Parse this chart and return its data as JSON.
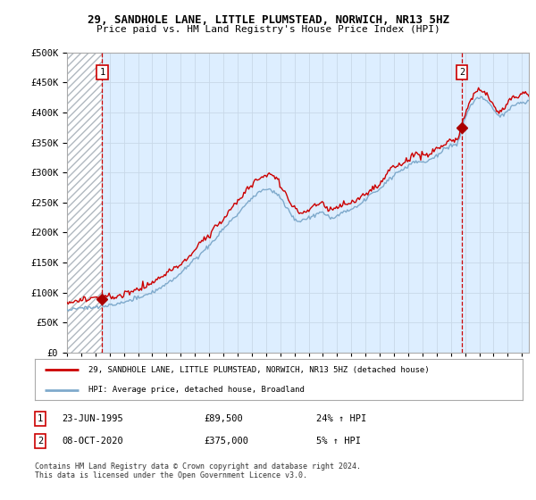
{
  "title_line1": "29, SANDHOLE LANE, LITTLE PLUMSTEAD, NORWICH, NR13 5HZ",
  "title_line2": "Price paid vs. HM Land Registry's House Price Index (HPI)",
  "ylim": [
    0,
    500000
  ],
  "yticks": [
    0,
    50000,
    100000,
    150000,
    200000,
    250000,
    300000,
    350000,
    400000,
    450000,
    500000
  ],
  "ytick_labels": [
    "£0",
    "£50K",
    "£100K",
    "£150K",
    "£200K",
    "£250K",
    "£300K",
    "£350K",
    "£400K",
    "£450K",
    "£500K"
  ],
  "xlim_start": 1993.0,
  "xlim_end": 2025.5,
  "xticks": [
    1993,
    1994,
    1995,
    1996,
    1997,
    1998,
    1999,
    2000,
    2001,
    2002,
    2003,
    2004,
    2005,
    2006,
    2007,
    2008,
    2009,
    2010,
    2011,
    2012,
    2013,
    2014,
    2015,
    2016,
    2017,
    2018,
    2019,
    2020,
    2021,
    2022,
    2023,
    2024,
    2025
  ],
  "sale1_x": 1995.48,
  "sale1_y": 89500,
  "sale1_label": "1",
  "sale1_date": "23-JUN-1995",
  "sale1_price": "£89,500",
  "sale1_hpi": "24% ↑ HPI",
  "sale2_x": 2020.77,
  "sale2_y": 375000,
  "sale2_label": "2",
  "sale2_date": "08-OCT-2020",
  "sale2_price": "£375,000",
  "sale2_hpi": "5% ↑ HPI",
  "line1_color": "#cc0000",
  "line2_color": "#7faacc",
  "grid_color": "#c8d8e8",
  "bg_plot": "#ddeeff",
  "hatch_bg": "#ffffff",
  "legend1_text": "29, SANDHOLE LANE, LITTLE PLUMSTEAD, NORWICH, NR13 5HZ (detached house)",
  "legend2_text": "HPI: Average price, detached house, Broadland",
  "footnote": "Contains HM Land Registry data © Crown copyright and database right 2024.\nThis data is licensed under the Open Government Licence v3.0.",
  "sale_marker_color": "#aa0000"
}
